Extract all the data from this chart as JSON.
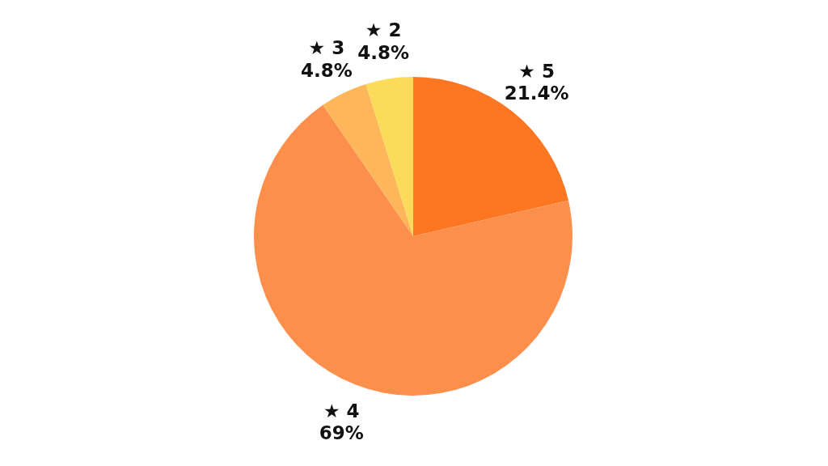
{
  "chart_data": {
    "type": "pie",
    "categories": [
      "★ 5",
      "★ 4",
      "★ 3",
      "★ 2"
    ],
    "values": [
      21.4,
      69,
      4.8,
      4.8
    ],
    "colors": [
      "#fd7722",
      "#fd8f4d",
      "#fdb65a",
      "#fcdb5a"
    ],
    "value_labels": [
      "21.4%",
      "69%",
      "4.8%",
      "4.8%"
    ],
    "legend": false
  }
}
